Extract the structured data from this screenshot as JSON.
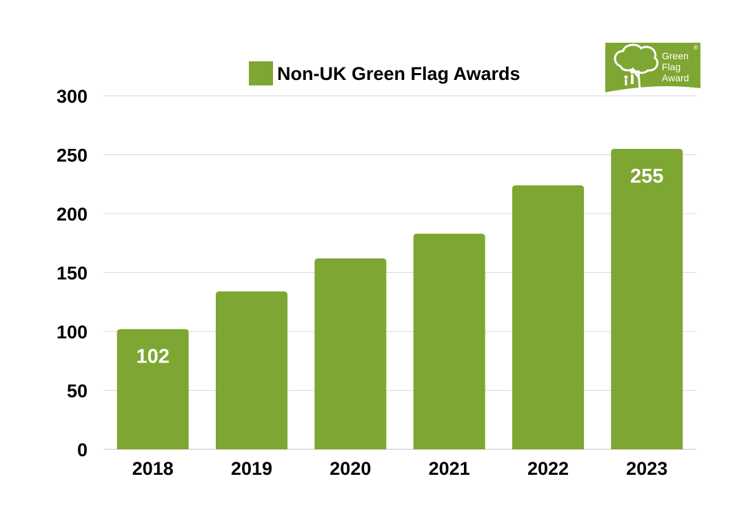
{
  "chart_data": {
    "type": "bar",
    "categories": [
      "2018",
      "2019",
      "2020",
      "2021",
      "2022",
      "2023"
    ],
    "series": [
      {
        "name": "Non-UK Green Flag Awards",
        "values": [
          102,
          134,
          162,
          183,
          224,
          255
        ]
      }
    ],
    "data_labels": [
      {
        "category": "2018",
        "text": "102"
      },
      {
        "category": "2023",
        "text": "255"
      }
    ],
    "ylim": [
      0,
      300
    ],
    "yticks": [
      0,
      50,
      100,
      150,
      200,
      250,
      300
    ],
    "ytick_labels": [
      "0",
      "50",
      "100",
      "150",
      "200",
      "250",
      "300"
    ],
    "grid": true,
    "legend_position": "top-center",
    "colors": {
      "bar": "#7ea632",
      "grid": "#d9d9d9",
      "axis": "#bfbfbf"
    }
  },
  "logo": {
    "name": "green-flag-award-logo",
    "lines": [
      "Green",
      "Flag",
      "Award"
    ],
    "mark": "®",
    "color": "#7ea632"
  }
}
